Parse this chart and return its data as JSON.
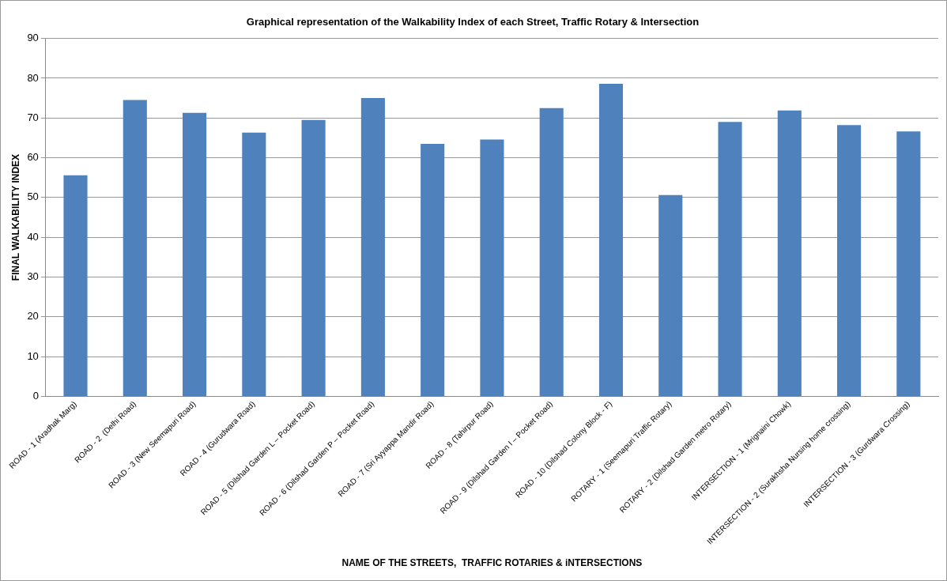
{
  "chart_data": {
    "type": "bar",
    "title": "Graphical representation of the Walkability Index of each Street, Traffic Rotary & Intersection",
    "xlabel": "NAME OF THE STREETS,  TRAFFIC ROTARIES & iNTERSECTIONS",
    "ylabel": "FINAL WALKABILITY INDEX",
    "categories": [
      "ROAD - 1 (Aradhak Marg)",
      "ROAD - 2  (Delhi Road)",
      "ROAD - 3 (New Seemapuri Road)",
      "ROAD - 4 (Gurudwara Road)",
      "ROAD - 5 (Dilshad Garden L – Pocket Road)",
      "ROAD - 6 (Dilshad Garden P – Pocket Road)",
      "ROAD - 7 (Sri Ayyappa Mandir Road)",
      "ROAD - 8 (Tahirpur Road)",
      "ROAD - 9 (Dilshad Garden I – Pocket Road)",
      "ROAD - 10 (Dilshad Colony Block - F)",
      "ROTARY - 1 (Seemapuri Traffic Rotary)",
      "ROTARY - 2 (Dilshad Garden metro Rotary)",
      "INTERSECTION - 1 (Mrignaini Chowk)",
      "INTERSECTION - 2 (Surakhsha Nursing home crossing)",
      "INTERSECTION - 3 (Gurdwara Crossing)"
    ],
    "values": [
      55.6,
      74.5,
      71.3,
      66.3,
      69.5,
      75.0,
      63.5,
      64.6,
      72.5,
      78.6,
      50.6,
      69.0,
      71.9,
      68.2,
      66.6
    ],
    "color": "#4f81bd",
    "ylim": [
      0,
      90
    ],
    "yticks": [
      0,
      10,
      20,
      30,
      40,
      50,
      60,
      70,
      80,
      90
    ],
    "grid": "y"
  }
}
